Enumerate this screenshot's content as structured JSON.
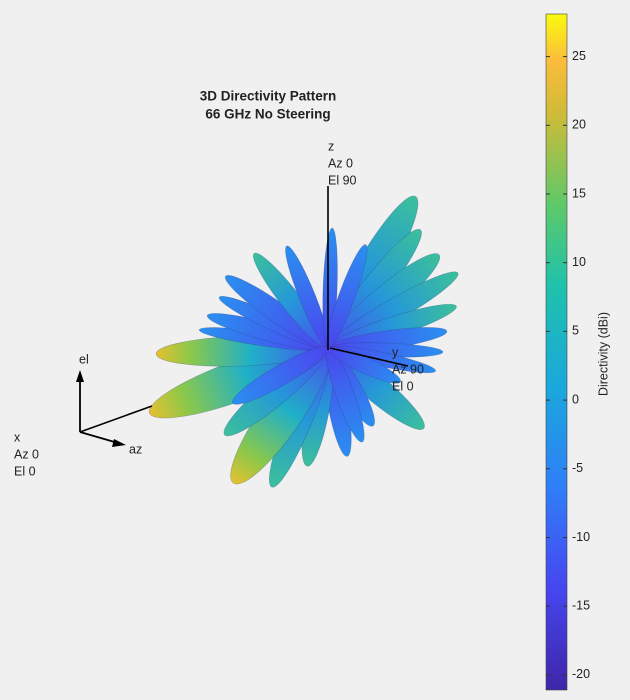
{
  "chart_data": {
    "type": "pattern3d",
    "title": [
      "3D Directivity Pattern",
      "66 GHz No Steering"
    ],
    "axis_labels": {
      "z": [
        "z",
        "Az 0",
        "El 90"
      ],
      "y": [
        "y",
        "Az 90",
        "El 0"
      ],
      "x": [
        "x",
        "Az 0",
        "El 0"
      ],
      "el": "el",
      "az": "az"
    },
    "colorbar": {
      "label": "Directivity (dBi)",
      "lim": [
        -21.1,
        28.1
      ],
      "ticks": [
        -20,
        -15,
        -10,
        -5,
        0,
        5,
        10,
        15,
        20,
        25
      ]
    }
  }
}
